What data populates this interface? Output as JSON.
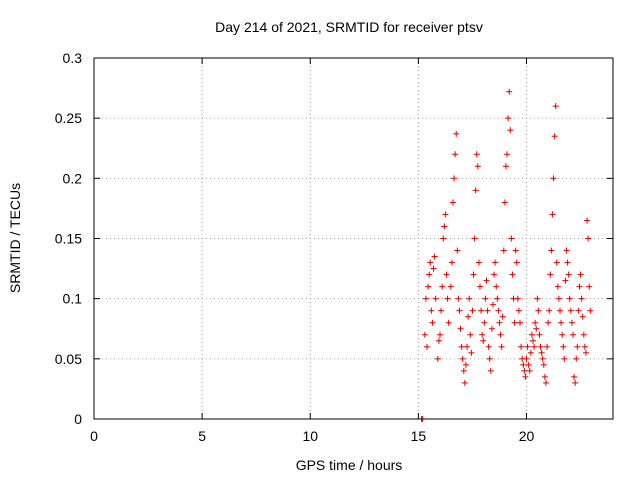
{
  "chart_data": {
    "type": "scatter",
    "title": "Day 214 of 2021, SRMTID for receiver ptsv",
    "xlabel": "GPS time / hours",
    "ylabel": "SRMTID / TECUs",
    "xlim": [
      0,
      24
    ],
    "ylim": [
      0,
      0.3
    ],
    "grid": true,
    "marker": "+",
    "color": "#e00000",
    "xticks": [
      {
        "value": 0,
        "label": "0"
      },
      {
        "value": 5,
        "label": "5"
      },
      {
        "value": 10,
        "label": "10"
      },
      {
        "value": 15,
        "label": "15"
      },
      {
        "value": 20,
        "label": "20"
      }
    ],
    "yticks": [
      {
        "value": 0,
        "label": "0"
      },
      {
        "value": 0.05,
        "label": "0.05"
      },
      {
        "value": 0.1,
        "label": "0.1"
      },
      {
        "value": 0.15,
        "label": "0.15"
      },
      {
        "value": 0.2,
        "label": "0.2"
      },
      {
        "value": 0.25,
        "label": "0.25"
      },
      {
        "value": 0.3,
        "label": "0.3"
      }
    ],
    "series": [
      {
        "name": "SRMTID",
        "points": [
          [
            15.15,
            0.0
          ],
          [
            15.2,
            0.0
          ],
          [
            15.3,
            0.07
          ],
          [
            15.35,
            0.1
          ],
          [
            15.4,
            0.06
          ],
          [
            15.45,
            0.11
          ],
          [
            15.5,
            0.12
          ],
          [
            15.55,
            0.13
          ],
          [
            15.6,
            0.09
          ],
          [
            15.65,
            0.08
          ],
          [
            15.7,
            0.125
          ],
          [
            15.75,
            0.135
          ],
          [
            15.8,
            0.1
          ],
          [
            15.9,
            0.05
          ],
          [
            15.95,
            0.065
          ],
          [
            16.0,
            0.07
          ],
          [
            16.05,
            0.09
          ],
          [
            16.1,
            0.11
          ],
          [
            16.15,
            0.15
          ],
          [
            16.2,
            0.16
          ],
          [
            16.25,
            0.17
          ],
          [
            16.3,
            0.12
          ],
          [
            16.35,
            0.1
          ],
          [
            16.4,
            0.08
          ],
          [
            16.5,
            0.11
          ],
          [
            16.55,
            0.13
          ],
          [
            16.6,
            0.18
          ],
          [
            16.65,
            0.2
          ],
          [
            16.7,
            0.22
          ],
          [
            16.75,
            0.237
          ],
          [
            16.8,
            0.14
          ],
          [
            16.85,
            0.1
          ],
          [
            16.9,
            0.09
          ],
          [
            16.95,
            0.075
          ],
          [
            17.0,
            0.06
          ],
          [
            17.05,
            0.05
          ],
          [
            17.1,
            0.04
          ],
          [
            17.15,
            0.03
          ],
          [
            17.2,
            0.045
          ],
          [
            17.25,
            0.06
          ],
          [
            17.3,
            0.085
          ],
          [
            17.35,
            0.1
          ],
          [
            17.4,
            0.07
          ],
          [
            17.45,
            0.055
          ],
          [
            17.5,
            0.09
          ],
          [
            17.55,
            0.12
          ],
          [
            17.6,
            0.15
          ],
          [
            17.65,
            0.19
          ],
          [
            17.7,
            0.22
          ],
          [
            17.75,
            0.21
          ],
          [
            17.8,
            0.13
          ],
          [
            17.85,
            0.11
          ],
          [
            17.9,
            0.09
          ],
          [
            17.95,
            0.07
          ],
          [
            18.0,
            0.065
          ],
          [
            18.05,
            0.08
          ],
          [
            18.1,
            0.1
          ],
          [
            18.15,
            0.115
          ],
          [
            18.2,
            0.09
          ],
          [
            18.25,
            0.06
          ],
          [
            18.3,
            0.05
          ],
          [
            18.35,
            0.04
          ],
          [
            18.4,
            0.075
          ],
          [
            18.45,
            0.095
          ],
          [
            18.5,
            0.12
          ],
          [
            18.55,
            0.13
          ],
          [
            18.6,
            0.11
          ],
          [
            18.65,
            0.1
          ],
          [
            18.7,
            0.09
          ],
          [
            18.75,
            0.08
          ],
          [
            18.8,
            0.07
          ],
          [
            18.85,
            0.06
          ],
          [
            18.9,
            0.085
          ],
          [
            18.95,
            0.14
          ],
          [
            19.0,
            0.18
          ],
          [
            19.05,
            0.21
          ],
          [
            19.1,
            0.22
          ],
          [
            19.15,
            0.25
          ],
          [
            19.2,
            0.272
          ],
          [
            19.25,
            0.24
          ],
          [
            19.3,
            0.15
          ],
          [
            19.35,
            0.12
          ],
          [
            19.4,
            0.1
          ],
          [
            19.45,
            0.08
          ],
          [
            19.5,
            0.14
          ],
          [
            19.55,
            0.13
          ],
          [
            19.6,
            0.1
          ],
          [
            19.65,
            0.09
          ],
          [
            19.7,
            0.08
          ],
          [
            19.75,
            0.06
          ],
          [
            19.8,
            0.05
          ],
          [
            19.85,
            0.045
          ],
          [
            19.9,
            0.04
          ],
          [
            19.95,
            0.035
          ],
          [
            20.0,
            0.05
          ],
          [
            20.05,
            0.06
          ],
          [
            20.1,
            0.045
          ],
          [
            20.15,
            0.04
          ],
          [
            20.2,
            0.055
          ],
          [
            20.25,
            0.07
          ],
          [
            20.3,
            0.065
          ],
          [
            20.35,
            0.06
          ],
          [
            20.4,
            0.08
          ],
          [
            20.45,
            0.075
          ],
          [
            20.5,
            0.1
          ],
          [
            20.55,
            0.09
          ],
          [
            20.6,
            0.07
          ],
          [
            20.65,
            0.06
          ],
          [
            20.7,
            0.055
          ],
          [
            20.75,
            0.05
          ],
          [
            20.8,
            0.045
          ],
          [
            20.85,
            0.035
          ],
          [
            20.9,
            0.03
          ],
          [
            20.95,
            0.06
          ],
          [
            21.0,
            0.08
          ],
          [
            21.05,
            0.09
          ],
          [
            21.1,
            0.12
          ],
          [
            21.15,
            0.14
          ],
          [
            21.2,
            0.17
          ],
          [
            21.25,
            0.2
          ],
          [
            21.3,
            0.235
          ],
          [
            21.35,
            0.26
          ],
          [
            21.4,
            0.13
          ],
          [
            21.45,
            0.11
          ],
          [
            21.5,
            0.1
          ],
          [
            21.55,
            0.09
          ],
          [
            21.6,
            0.08
          ],
          [
            21.65,
            0.07
          ],
          [
            21.7,
            0.06
          ],
          [
            21.75,
            0.05
          ],
          [
            21.8,
            0.115
          ],
          [
            21.85,
            0.14
          ],
          [
            21.9,
            0.13
          ],
          [
            21.95,
            0.12
          ],
          [
            22.0,
            0.1
          ],
          [
            22.05,
            0.09
          ],
          [
            22.1,
            0.08
          ],
          [
            22.15,
            0.07
          ],
          [
            22.2,
            0.035
          ],
          [
            22.25,
            0.03
          ],
          [
            22.3,
            0.05
          ],
          [
            22.35,
            0.06
          ],
          [
            22.4,
            0.09
          ],
          [
            22.45,
            0.11
          ],
          [
            22.5,
            0.12
          ],
          [
            22.55,
            0.1
          ],
          [
            22.6,
            0.085
          ],
          [
            22.65,
            0.07
          ],
          [
            22.7,
            0.06
          ],
          [
            22.75,
            0.055
          ],
          [
            22.8,
            0.165
          ],
          [
            22.85,
            0.15
          ],
          [
            22.9,
            0.11
          ],
          [
            22.95,
            0.09
          ]
        ]
      }
    ]
  }
}
